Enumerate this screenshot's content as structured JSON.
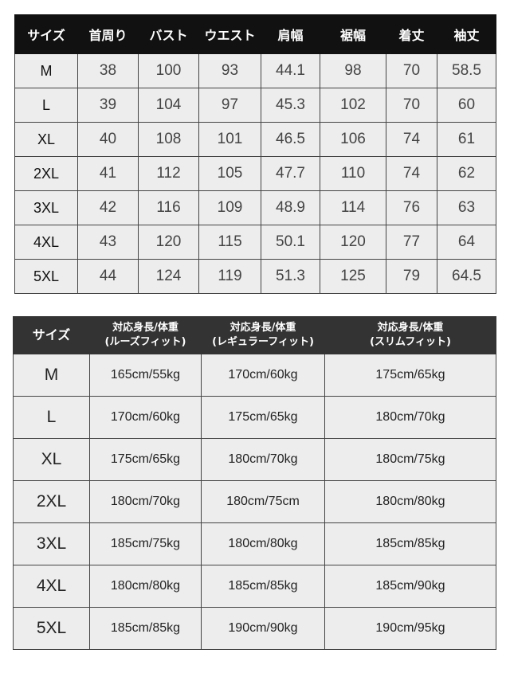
{
  "measurement_table": {
    "headers": [
      "サイズ",
      "首周り",
      "バスト",
      "ウエスト",
      "肩幅",
      "裾幅",
      "着丈",
      "袖丈"
    ],
    "rows": [
      [
        "M",
        "38",
        "100",
        "93",
        "44.1",
        "98",
        "70",
        "58.5"
      ],
      [
        "L",
        "39",
        "104",
        "97",
        "45.3",
        "102",
        "70",
        "60"
      ],
      [
        "XL",
        "40",
        "108",
        "101",
        "46.5",
        "106",
        "74",
        "61"
      ],
      [
        "2XL",
        "41",
        "112",
        "105",
        "47.7",
        "110",
        "74",
        "62"
      ],
      [
        "3XL",
        "42",
        "116",
        "109",
        "48.9",
        "114",
        "76",
        "63"
      ],
      [
        "4XL",
        "43",
        "120",
        "115",
        "50.1",
        "120",
        "77",
        "64"
      ],
      [
        "5XL",
        "44",
        "124",
        "119",
        "51.3",
        "125",
        "79",
        "64.5"
      ]
    ]
  },
  "fit_table": {
    "headers": [
      {
        "line1": "サイズ",
        "line2": ""
      },
      {
        "line1": "対応身長/体重",
        "line2": "(ルーズフィット)"
      },
      {
        "line1": "対応身長/体重",
        "line2": "(レギュラーフィット)"
      },
      {
        "line1": "対応身長/体重",
        "line2": "(スリムフィット)"
      }
    ],
    "rows": [
      [
        "M",
        "165cm/55kg",
        "170cm/60kg",
        "175cm/65kg"
      ],
      [
        "L",
        "170cm/60kg",
        "175cm/65kg",
        "180cm/70kg"
      ],
      [
        "XL",
        "175cm/65kg",
        "180cm/70kg",
        "180cm/75kg"
      ],
      [
        "2XL",
        "180cm/70kg",
        "180cm/75cm",
        "180cm/80kg"
      ],
      [
        "3XL",
        "185cm/75kg",
        "180cm/80kg",
        "185cm/85kg"
      ],
      [
        "4XL",
        "180cm/80kg",
        "185cm/85kg",
        "185cm/90kg"
      ],
      [
        "5XL",
        "185cm/85kg",
        "190cm/90kg",
        "190cm/95kg"
      ]
    ]
  }
}
